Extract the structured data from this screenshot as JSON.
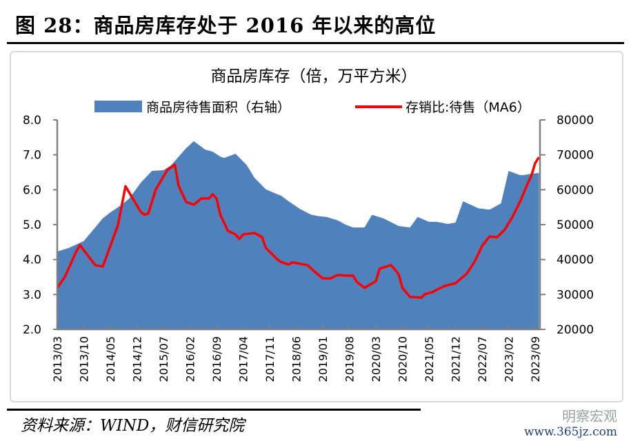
{
  "figure": {
    "title": "图 28：商品房库存处于 2016 年以来的高位",
    "source": "资料来源：WIND，财信研究院",
    "watermark": {
      "name": "明察宏观",
      "url": "www.365jz.com"
    }
  },
  "chart_data": {
    "type": "area+line",
    "title": "商品房库存（倍，万平方米）",
    "legend_position": "top",
    "grid": false,
    "x_ticks": [
      "2013/03",
      "2013/10",
      "2014/05",
      "2014/12",
      "2015/07",
      "2016/02",
      "2016/09",
      "2017/04",
      "2017/11",
      "2018/06",
      "2019/01",
      "2019/08",
      "2020/03",
      "2020/10",
      "2021/05",
      "2021/12",
      "2022/07",
      "2023/02",
      "2023/09"
    ],
    "left_axis": {
      "ylim": [
        2.0,
        8.0
      ],
      "ticks": [
        "2.0",
        "3.0",
        "4.0",
        "5.0",
        "6.0",
        "7.0",
        "8.0"
      ]
    },
    "right_axis": {
      "ylim": [
        20000,
        80000
      ],
      "ticks": [
        "20000",
        "30000",
        "40000",
        "50000",
        "60000",
        "70000",
        "80000"
      ]
    },
    "series": [
      {
        "name": "商品房待售面积（右轴）",
        "type": "area",
        "axis": "right",
        "color": "#4f81bd",
        "points": [
          [
            "2013/03",
            42300
          ],
          [
            "2013/06",
            43300
          ],
          [
            "2013/08",
            44300
          ],
          [
            "2013/10",
            45300
          ],
          [
            "2014/01",
            49200
          ],
          [
            "2014/03",
            51800
          ],
          [
            "2014/05",
            53500
          ],
          [
            "2014/08",
            55700
          ],
          [
            "2014/10",
            57500
          ],
          [
            "2015/01",
            62000
          ],
          [
            "2015/04",
            65400
          ],
          [
            "2015/07",
            65600
          ],
          [
            "2015/09",
            67000
          ],
          [
            "2016/01",
            71900
          ],
          [
            "2016/03",
            73900
          ],
          [
            "2016/06",
            71500
          ],
          [
            "2016/08",
            70900
          ],
          [
            "2016/10",
            69500
          ],
          [
            "2016/11",
            69100
          ],
          [
            "2017/02",
            70300
          ],
          [
            "2017/05",
            67000
          ],
          [
            "2017/07",
            63400
          ],
          [
            "2017/10",
            60100
          ],
          [
            "2018/01",
            58700
          ],
          [
            "2018/02",
            58300
          ],
          [
            "2018/04",
            56700
          ],
          [
            "2018/07",
            54500
          ],
          [
            "2018/10",
            52800
          ],
          [
            "2018/12",
            52400
          ],
          [
            "2019/02",
            52200
          ],
          [
            "2019/05",
            51200
          ],
          [
            "2019/07",
            50000
          ],
          [
            "2019/09",
            49200
          ],
          [
            "2019/12",
            49200
          ],
          [
            "2020/02",
            52800
          ],
          [
            "2020/05",
            51800
          ],
          [
            "2020/09",
            49600
          ],
          [
            "2020/12",
            49200
          ],
          [
            "2021/02",
            52200
          ],
          [
            "2021/05",
            50800
          ],
          [
            "2021/07",
            50800
          ],
          [
            "2021/10",
            50200
          ],
          [
            "2021/12",
            50600
          ],
          [
            "2022/02",
            56700
          ],
          [
            "2022/04",
            55700
          ],
          [
            "2022/06",
            54700
          ],
          [
            "2022/09",
            54300
          ],
          [
            "2022/12",
            56100
          ],
          [
            "2023/02",
            65400
          ],
          [
            "2023/05",
            64200
          ],
          [
            "2023/06",
            64200
          ],
          [
            "2023/08",
            64600
          ],
          [
            "2023/10",
            64800
          ]
        ]
      },
      {
        "name": "存销比:待售（MA6）",
        "type": "line",
        "axis": "left",
        "color": "#ff0000",
        "points": [
          [
            "2013/03",
            3.19
          ],
          [
            "2013/05",
            3.5
          ],
          [
            "2013/08",
            4.23
          ],
          [
            "2013/09",
            4.41
          ],
          [
            "2014/01",
            3.84
          ],
          [
            "2014/03",
            3.8
          ],
          [
            "2014/07",
            4.98
          ],
          [
            "2014/09",
            6.1
          ],
          [
            "2015/01",
            5.37
          ],
          [
            "2015/02",
            5.28
          ],
          [
            "2015/03",
            5.32
          ],
          [
            "2015/05",
            6.01
          ],
          [
            "2015/08",
            6.56
          ],
          [
            "2015/10",
            6.72
          ],
          [
            "2015/11",
            6.11
          ],
          [
            "2016/01",
            5.65
          ],
          [
            "2016/03",
            5.57
          ],
          [
            "2016/05",
            5.75
          ],
          [
            "2016/07",
            5.75
          ],
          [
            "2016/08",
            5.87
          ],
          [
            "2016/09",
            5.75
          ],
          [
            "2016/10",
            5.28
          ],
          [
            "2016/12",
            4.82
          ],
          [
            "2017/02",
            4.72
          ],
          [
            "2017/03",
            4.59
          ],
          [
            "2017/04",
            4.72
          ],
          [
            "2017/07",
            4.76
          ],
          [
            "2017/09",
            4.64
          ],
          [
            "2017/10",
            4.33
          ],
          [
            "2018/01",
            4.01
          ],
          [
            "2018/02",
            3.93
          ],
          [
            "2018/04",
            3.86
          ],
          [
            "2018/05",
            3.92
          ],
          [
            "2018/07",
            3.88
          ],
          [
            "2018/09",
            3.84
          ],
          [
            "2018/11",
            3.64
          ],
          [
            "2019/01",
            3.46
          ],
          [
            "2019/03",
            3.46
          ],
          [
            "2019/05",
            3.56
          ],
          [
            "2019/07",
            3.54
          ],
          [
            "2019/09",
            3.54
          ],
          [
            "2019/10",
            3.36
          ],
          [
            "2019/12",
            3.19
          ],
          [
            "2020/03",
            3.38
          ],
          [
            "2020/04",
            3.74
          ],
          [
            "2020/07",
            3.84
          ],
          [
            "2020/09",
            3.58
          ],
          [
            "2020/10",
            3.19
          ],
          [
            "2020/12",
            2.93
          ],
          [
            "2021/03",
            2.91
          ],
          [
            "2021/04",
            3.01
          ],
          [
            "2021/06",
            3.07
          ],
          [
            "2021/07",
            3.13
          ],
          [
            "2021/09",
            3.24
          ],
          [
            "2021/12",
            3.32
          ],
          [
            "2022/03",
            3.6
          ],
          [
            "2022/05",
            3.93
          ],
          [
            "2022/07",
            4.39
          ],
          [
            "2022/09",
            4.66
          ],
          [
            "2022/11",
            4.64
          ],
          [
            "2023/01",
            4.86
          ],
          [
            "2023/03",
            5.22
          ],
          [
            "2023/05",
            5.65
          ],
          [
            "2023/07",
            6.17
          ],
          [
            "2023/08",
            6.4
          ],
          [
            "2023/09",
            6.76
          ],
          [
            "2023/10",
            6.93
          ]
        ]
      }
    ]
  }
}
